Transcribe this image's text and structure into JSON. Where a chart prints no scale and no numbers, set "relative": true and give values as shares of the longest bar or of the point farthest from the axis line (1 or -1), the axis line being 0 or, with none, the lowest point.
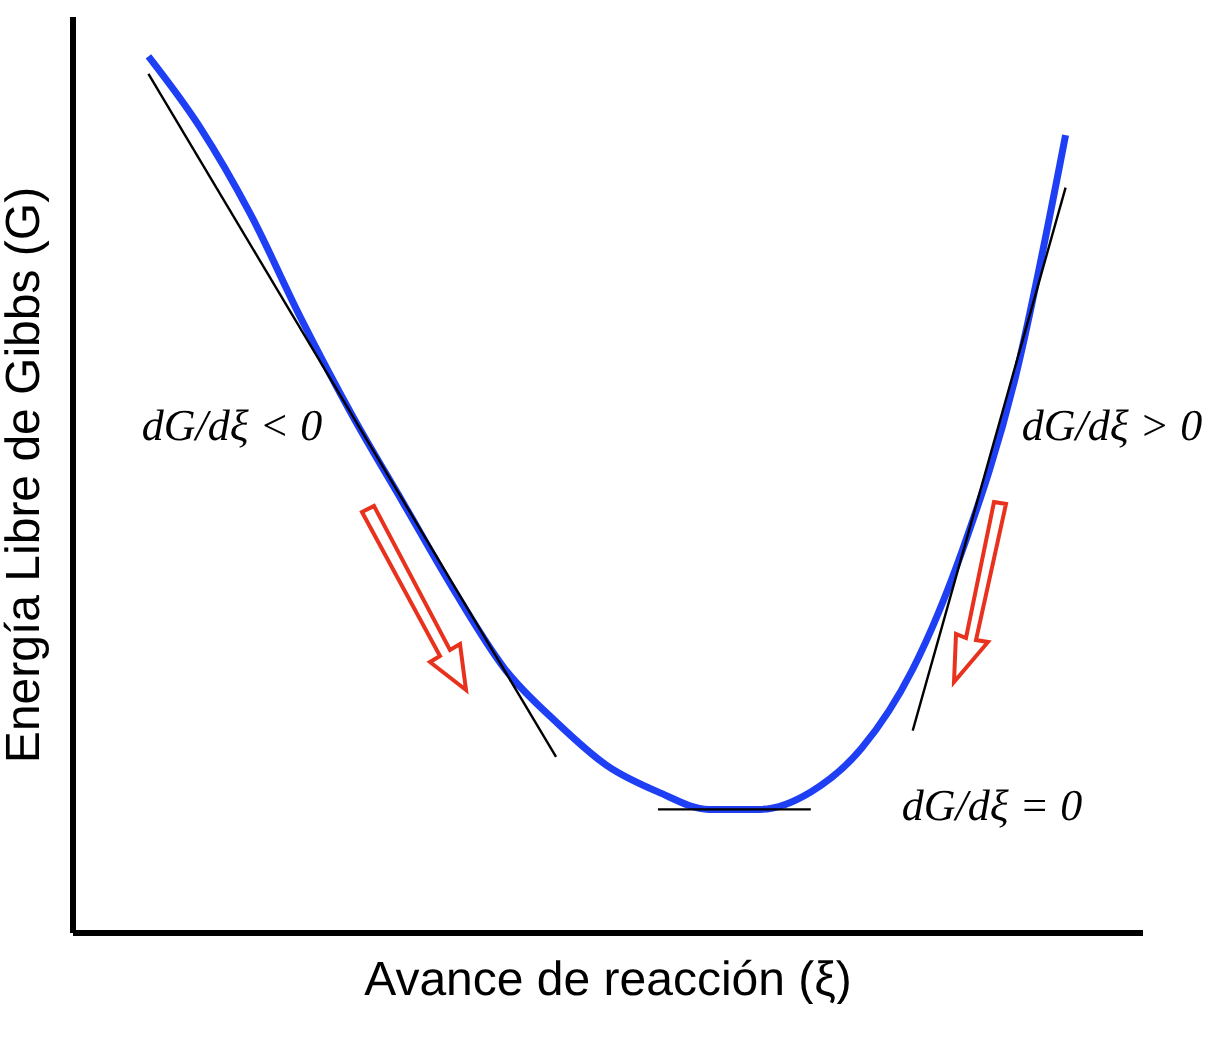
{
  "chart_data": {
    "type": "line",
    "relative": true,
    "xlabel": "Avance de reacción (ξ)",
    "ylabel": "Energía Libre de Gibbs (G)",
    "categories": [
      null,
      null,
      null,
      null,
      null,
      null,
      null,
      null,
      null,
      null,
      null,
      null,
      null,
      null,
      null,
      null,
      null,
      null,
      null,
      null,
      null
    ],
    "series": [
      {
        "color": "#1f3ff5",
        "values": [
          null,
          1,
          0.92,
          0.82,
          0.7,
          0.59,
          0.49,
          0.39,
          0.3,
          0.24,
          0.19,
          0.16,
          0.14,
          0.14,
          0.16,
          0.21,
          0.3,
          0.44,
          0.63,
          0.91,
          null
        ]
      },
      {
        "type": "line",
        "color": "#000000",
        "values": [
          null,
          0.98,
          null,
          null,
          null,
          null,
          null,
          null,
          null,
          0.2,
          null,
          null,
          null,
          null,
          null,
          null,
          null,
          null,
          null,
          null,
          null
        ]
      },
      {
        "type": "line",
        "color": "#000000",
        "values": [
          null,
          null,
          null,
          null,
          null,
          null,
          null,
          null,
          null,
          null,
          null,
          0.14,
          null,
          null,
          0.14,
          null,
          null,
          null,
          null,
          null,
          null
        ]
      },
      {
        "type": "line",
        "color": "#000000",
        "values": [
          null,
          null,
          null,
          null,
          null,
          null,
          null,
          null,
          null,
          null,
          null,
          null,
          null,
          null,
          null,
          null,
          0.23,
          null,
          null,
          0.85,
          null
        ]
      }
    ],
    "annotations": [
      "dG/dξ < 0",
      "dG/dξ > 0",
      "dG/dξ = 0"
    ],
    "grid": false
  }
}
